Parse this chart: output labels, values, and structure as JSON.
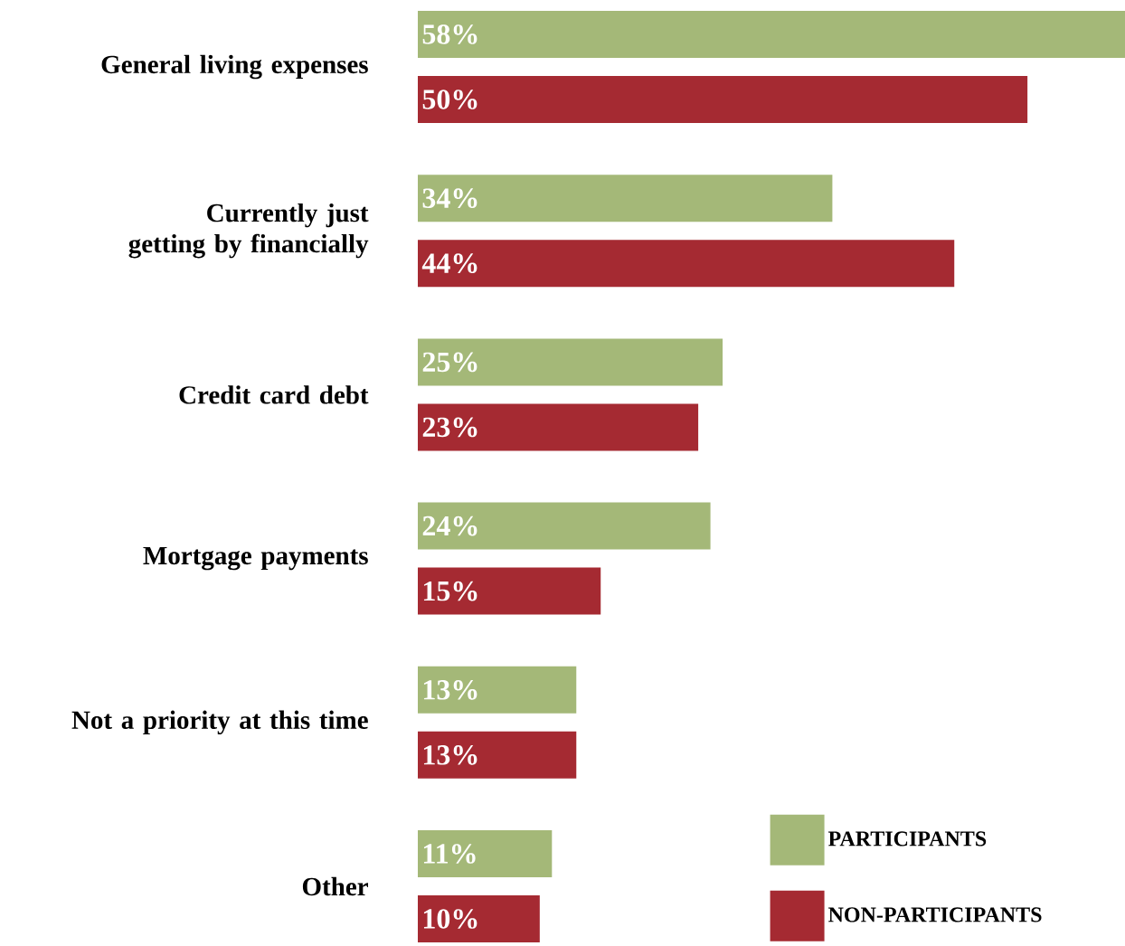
{
  "chart_data": {
    "type": "bar",
    "orientation": "horizontal",
    "categories": [
      "General living expenses",
      "Currently just getting by financially",
      "Credit card debt",
      "Mortgage payments",
      "Not a priority at this time",
      "Other"
    ],
    "series": [
      {
        "name": "PARTICIPANTS",
        "color": "#a4b878",
        "values": [
          58,
          34,
          25,
          24,
          13,
          11
        ],
        "value_labels": [
          "58%",
          "34%",
          "25%",
          "24%",
          "13%",
          "11%"
        ]
      },
      {
        "name": "NON-PARTICIPANTS",
        "color": "#a52a32",
        "values": [
          50,
          44,
          23,
          15,
          13,
          10
        ],
        "value_labels": [
          "50%",
          "44%",
          "23%",
          "15%",
          "13%",
          "10%"
        ]
      }
    ],
    "legend": "bottom right"
  }
}
